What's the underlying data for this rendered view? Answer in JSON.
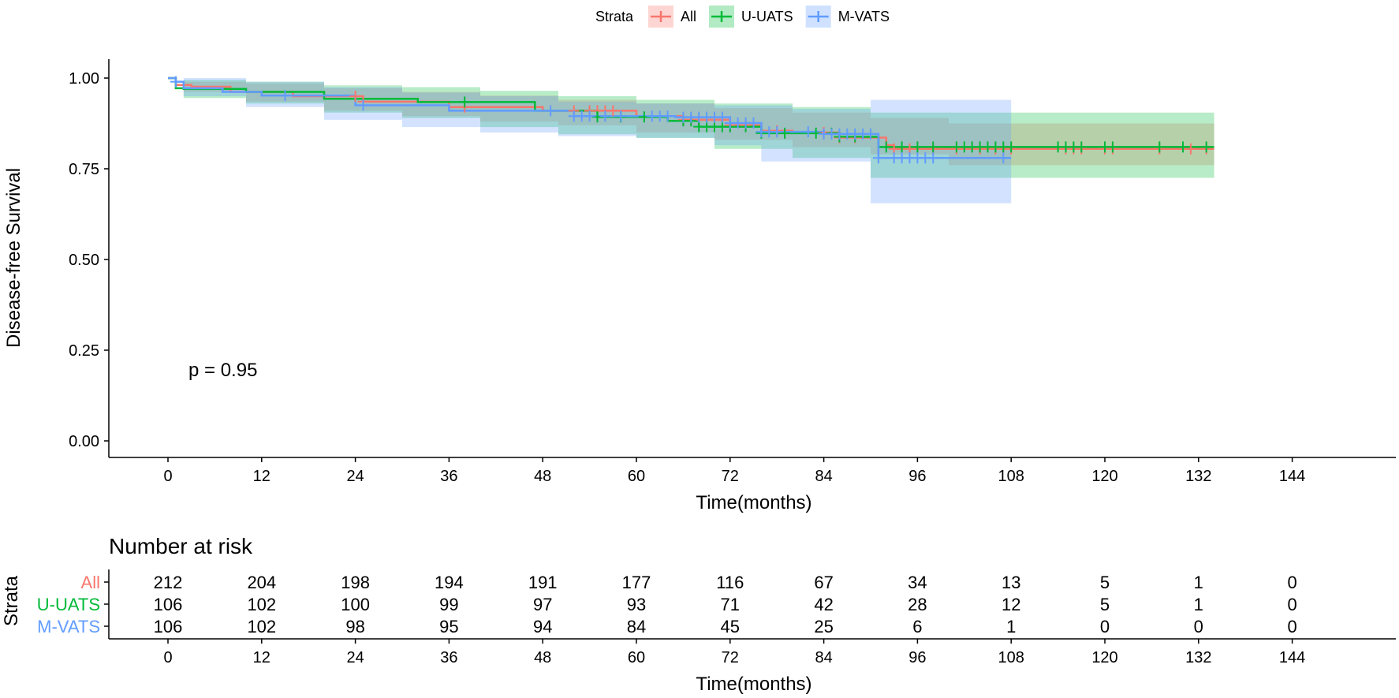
{
  "chart_data": {
    "type": "line",
    "subtype": "kaplan-meier",
    "ylabel": "Disease-free Survival",
    "xlabel": "Time(months)",
    "xlim": [
      0,
      150
    ],
    "ylim": [
      0,
      1.05
    ],
    "x_ticks": [
      0,
      12,
      24,
      36,
      48,
      60,
      72,
      84,
      96,
      108,
      120,
      132,
      144
    ],
    "y_ticks": [
      0.0,
      0.25,
      0.5,
      0.75,
      1.0
    ],
    "y_tick_labels": [
      "0.00",
      "0.25",
      "0.50",
      "0.75",
      "1.00"
    ],
    "legend": {
      "title": "Strata",
      "position": "top",
      "entries": [
        "All",
        "U-UATS",
        "M-VATS"
      ]
    },
    "annotation": "p = 0.95",
    "series": [
      {
        "name": "All",
        "color": "#F8766D",
        "steps": [
          [
            0,
            1.0
          ],
          [
            1,
            0.981
          ],
          [
            3,
            0.976
          ],
          [
            8,
            0.962
          ],
          [
            16,
            0.95
          ],
          [
            25,
            0.935
          ],
          [
            36,
            0.92
          ],
          [
            48,
            0.91
          ],
          [
            60,
            0.895
          ],
          [
            66,
            0.885
          ],
          [
            72,
            0.87
          ],
          [
            76,
            0.855
          ],
          [
            80,
            0.85
          ],
          [
            86,
            0.836
          ],
          [
            92,
            0.815
          ],
          [
            93,
            0.805
          ],
          [
            134,
            0.805
          ]
        ],
        "ci_upper": [
          [
            0,
            1.0
          ],
          [
            2,
            0.99
          ],
          [
            10,
            0.985
          ],
          [
            20,
            0.972
          ],
          [
            30,
            0.962
          ],
          [
            40,
            0.952
          ],
          [
            50,
            0.94
          ],
          [
            60,
            0.93
          ],
          [
            70,
            0.917
          ],
          [
            80,
            0.905
          ],
          [
            90,
            0.89
          ],
          [
            100,
            0.875
          ],
          [
            134,
            0.875
          ]
        ],
        "ci_lower": [
          [
            0,
            1.0
          ],
          [
            2,
            0.962
          ],
          [
            10,
            0.935
          ],
          [
            20,
            0.91
          ],
          [
            30,
            0.895
          ],
          [
            40,
            0.88
          ],
          [
            50,
            0.87
          ],
          [
            60,
            0.85
          ],
          [
            70,
            0.83
          ],
          [
            80,
            0.81
          ],
          [
            90,
            0.79
          ],
          [
            100,
            0.76
          ],
          [
            134,
            0.76
          ]
        ],
        "censor": [
          24,
          25,
          38,
          52,
          54,
          55,
          56,
          57,
          66,
          67,
          68,
          70,
          72,
          74,
          78,
          84,
          86,
          88,
          93,
          95,
          98,
          101,
          104,
          106,
          107,
          108,
          115,
          116,
          117,
          120,
          121,
          127,
          131,
          133
        ]
      },
      {
        "name": "U-UATS",
        "color": "#00BA38",
        "steps": [
          [
            0,
            1.0
          ],
          [
            1,
            0.972
          ],
          [
            2,
            0.97
          ],
          [
            10,
            0.962
          ],
          [
            20,
            0.943
          ],
          [
            32,
            0.934
          ],
          [
            47,
            0.91
          ],
          [
            55,
            0.893
          ],
          [
            64,
            0.882
          ],
          [
            68,
            0.866
          ],
          [
            76,
            0.848
          ],
          [
            86,
            0.838
          ],
          [
            91,
            0.81
          ],
          [
            134,
            0.81
          ]
        ],
        "ci_upper": [
          [
            0,
            1.0
          ],
          [
            2,
            0.995
          ],
          [
            10,
            0.99
          ],
          [
            20,
            0.98
          ],
          [
            30,
            0.975
          ],
          [
            40,
            0.965
          ],
          [
            50,
            0.95
          ],
          [
            60,
            0.94
          ],
          [
            70,
            0.93
          ],
          [
            80,
            0.92
          ],
          [
            90,
            0.905
          ],
          [
            134,
            0.905
          ]
        ],
        "ci_lower": [
          [
            0,
            1.0
          ],
          [
            2,
            0.945
          ],
          [
            10,
            0.93
          ],
          [
            20,
            0.905
          ],
          [
            30,
            0.89
          ],
          [
            40,
            0.865
          ],
          [
            50,
            0.845
          ],
          [
            60,
            0.835
          ],
          [
            70,
            0.805
          ],
          [
            80,
            0.78
          ],
          [
            90,
            0.725
          ],
          [
            134,
            0.725
          ]
        ],
        "censor": [
          38,
          55,
          58,
          61,
          66,
          67,
          68,
          69,
          70,
          71,
          72,
          74,
          76,
          79,
          83,
          85,
          86,
          88,
          92,
          94,
          96,
          98,
          101,
          102,
          103,
          104,
          105,
          106,
          107,
          108,
          114,
          115,
          116,
          117,
          120,
          121,
          127,
          130,
          133
        ]
      },
      {
        "name": "M-VATS",
        "color": "#619CFF",
        "steps": [
          [
            0,
            1.0
          ],
          [
            1,
            0.99
          ],
          [
            2,
            0.972
          ],
          [
            7,
            0.962
          ],
          [
            12,
            0.952
          ],
          [
            24,
            0.925
          ],
          [
            36,
            0.91
          ],
          [
            52,
            0.895
          ],
          [
            65,
            0.892
          ],
          [
            72,
            0.876
          ],
          [
            76,
            0.852
          ],
          [
            84,
            0.846
          ],
          [
            91,
            0.78
          ],
          [
            108,
            0.78
          ]
        ],
        "ci_upper": [
          [
            0,
            1.0
          ],
          [
            2,
            1.0
          ],
          [
            10,
            0.99
          ],
          [
            20,
            0.975
          ],
          [
            30,
            0.96
          ],
          [
            40,
            0.95
          ],
          [
            50,
            0.935
          ],
          [
            60,
            0.93
          ],
          [
            70,
            0.925
          ],
          [
            80,
            0.915
          ],
          [
            90,
            0.94
          ],
          [
            108,
            0.94
          ]
        ],
        "ci_lower": [
          [
            0,
            1.0
          ],
          [
            2,
            0.95
          ],
          [
            10,
            0.92
          ],
          [
            20,
            0.885
          ],
          [
            30,
            0.865
          ],
          [
            40,
            0.85
          ],
          [
            50,
            0.84
          ],
          [
            60,
            0.835
          ],
          [
            70,
            0.815
          ],
          [
            76,
            0.77
          ],
          [
            90,
            0.655
          ],
          [
            108,
            0.655
          ]
        ],
        "censor": [
          1,
          15,
          25,
          49,
          52,
          53,
          54,
          56,
          58,
          62,
          63,
          64,
          66,
          67,
          68,
          69,
          70,
          71,
          72,
          73,
          74,
          75,
          76,
          77,
          78,
          82,
          84,
          85,
          86,
          87,
          88,
          89,
          90,
          91,
          93,
          94,
          95,
          96,
          97,
          98,
          107
        ]
      }
    ],
    "risk_table": {
      "title": "Number at risk",
      "ylabel": "Strata",
      "xlabel": "Time(months)",
      "rows": [
        {
          "name": "All",
          "color": "#F8766D",
          "values": [
            212,
            204,
            198,
            194,
            191,
            177,
            116,
            67,
            34,
            13,
            5,
            1,
            0
          ]
        },
        {
          "name": "U-UATS",
          "color": "#00BA38",
          "values": [
            106,
            102,
            100,
            99,
            97,
            93,
            71,
            42,
            28,
            12,
            5,
            1,
            0
          ]
        },
        {
          "name": "M-VATS",
          "color": "#619CFF",
          "values": [
            106,
            102,
            98,
            95,
            94,
            84,
            45,
            25,
            6,
            1,
            0,
            0,
            0
          ]
        }
      ]
    }
  }
}
